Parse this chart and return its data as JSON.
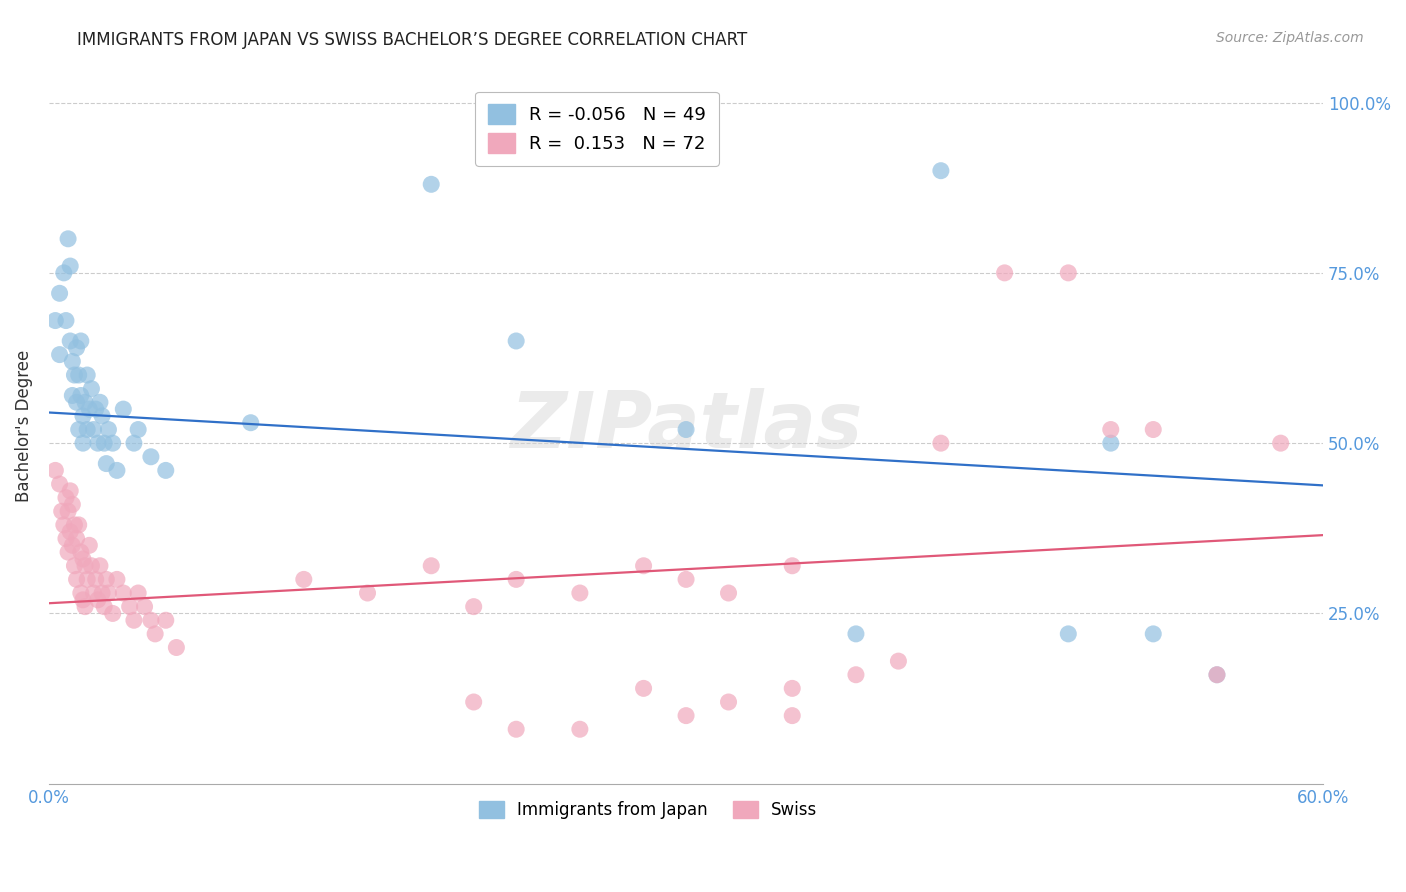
{
  "title": "IMMIGRANTS FROM JAPAN VS SWISS BACHELOR’S DEGREE CORRELATION CHART",
  "source": "Source: ZipAtlas.com",
  "ylabel": "Bachelor's Degree",
  "legend_labels": [
    "Immigrants from Japan",
    "Swiss"
  ],
  "blue_R": -0.056,
  "blue_N": 49,
  "pink_R": 0.153,
  "pink_N": 72,
  "xlim": [
    0.0,
    0.6
  ],
  "ylim": [
    0.0,
    1.05
  ],
  "blue_line_start_y": 0.545,
  "blue_line_end_y": 0.438,
  "pink_line_start_y": 0.265,
  "pink_line_end_y": 0.365,
  "blue_color": "#92c0e0",
  "pink_color": "#f0a8bc",
  "blue_line_color": "#3070c8",
  "pink_line_color": "#e05878",
  "watermark": "ZIPatlas",
  "background_color": "#ffffff",
  "blue_scatter_x": [
    0.003,
    0.005,
    0.005,
    0.007,
    0.008,
    0.009,
    0.01,
    0.01,
    0.011,
    0.011,
    0.012,
    0.013,
    0.013,
    0.014,
    0.014,
    0.015,
    0.015,
    0.016,
    0.016,
    0.017,
    0.018,
    0.018,
    0.019,
    0.02,
    0.021,
    0.022,
    0.023,
    0.024,
    0.025,
    0.026,
    0.027,
    0.028,
    0.03,
    0.032,
    0.035,
    0.04,
    0.042,
    0.048,
    0.055,
    0.095,
    0.18,
    0.22,
    0.3,
    0.38,
    0.42,
    0.48,
    0.5,
    0.52,
    0.55
  ],
  "blue_scatter_y": [
    0.68,
    0.72,
    0.63,
    0.75,
    0.68,
    0.8,
    0.65,
    0.76,
    0.62,
    0.57,
    0.6,
    0.56,
    0.64,
    0.52,
    0.6,
    0.57,
    0.65,
    0.54,
    0.5,
    0.56,
    0.52,
    0.6,
    0.55,
    0.58,
    0.52,
    0.55,
    0.5,
    0.56,
    0.54,
    0.5,
    0.47,
    0.52,
    0.5,
    0.46,
    0.55,
    0.5,
    0.52,
    0.48,
    0.46,
    0.53,
    0.88,
    0.65,
    0.52,
    0.22,
    0.9,
    0.22,
    0.5,
    0.22,
    0.16
  ],
  "pink_scatter_x": [
    0.003,
    0.005,
    0.006,
    0.007,
    0.008,
    0.008,
    0.009,
    0.009,
    0.01,
    0.01,
    0.011,
    0.011,
    0.012,
    0.012,
    0.013,
    0.013,
    0.014,
    0.015,
    0.015,
    0.016,
    0.016,
    0.017,
    0.017,
    0.018,
    0.019,
    0.02,
    0.021,
    0.022,
    0.023,
    0.024,
    0.025,
    0.026,
    0.027,
    0.028,
    0.03,
    0.032,
    0.035,
    0.038,
    0.04,
    0.042,
    0.045,
    0.048,
    0.05,
    0.055,
    0.06,
    0.12,
    0.15,
    0.18,
    0.2,
    0.22,
    0.25,
    0.28,
    0.3,
    0.32,
    0.35,
    0.35,
    0.38,
    0.4,
    0.42,
    0.45,
    0.48,
    0.5,
    0.52,
    0.55,
    0.58,
    0.3,
    0.32,
    0.35,
    0.28,
    0.25,
    0.22,
    0.2
  ],
  "pink_scatter_y": [
    0.46,
    0.44,
    0.4,
    0.38,
    0.42,
    0.36,
    0.4,
    0.34,
    0.43,
    0.37,
    0.41,
    0.35,
    0.38,
    0.32,
    0.36,
    0.3,
    0.38,
    0.34,
    0.28,
    0.33,
    0.27,
    0.32,
    0.26,
    0.3,
    0.35,
    0.32,
    0.28,
    0.3,
    0.27,
    0.32,
    0.28,
    0.26,
    0.3,
    0.28,
    0.25,
    0.3,
    0.28,
    0.26,
    0.24,
    0.28,
    0.26,
    0.24,
    0.22,
    0.24,
    0.2,
    0.3,
    0.28,
    0.32,
    0.26,
    0.3,
    0.28,
    0.32,
    0.3,
    0.28,
    0.32,
    0.14,
    0.16,
    0.18,
    0.5,
    0.75,
    0.75,
    0.52,
    0.52,
    0.16,
    0.5,
    0.1,
    0.12,
    0.1,
    0.14,
    0.08,
    0.08,
    0.12
  ]
}
